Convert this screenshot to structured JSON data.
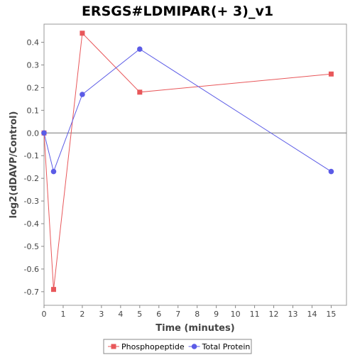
{
  "chart_data": {
    "type": "line",
    "title": "ERSGS#LDMIPAR(+ 3)_v1",
    "xlabel": "Time (minutes)",
    "ylabel": "log2(dDAVP/Control)",
    "xlim": [
      0,
      15.8
    ],
    "ylim": [
      -0.76,
      0.48
    ],
    "xticks": [
      0,
      1,
      2,
      3,
      4,
      5,
      6,
      7,
      8,
      9,
      10,
      11,
      12,
      13,
      14,
      15
    ],
    "yticks": [
      -0.7,
      -0.6,
      -0.5,
      -0.4,
      -0.3,
      -0.2,
      -0.1,
      0.0,
      0.1,
      0.2,
      0.3,
      0.4
    ],
    "ytick_labels": [
      "-0.7",
      "-0.6",
      "-0.5",
      "-0.4",
      "-0.3",
      "-0.2",
      "-0.1",
      "0.0",
      "0.1",
      "0.2",
      "0.3",
      "0.4"
    ],
    "grid": false,
    "zero_line": true,
    "legend_position": "bottom-center",
    "series": [
      {
        "name": "Phosphopeptide",
        "marker": "square",
        "color": "#e8575a",
        "x": [
          0,
          0.5,
          2,
          5,
          15
        ],
        "y": [
          0.0,
          -0.69,
          0.44,
          0.18,
          0.26
        ]
      },
      {
        "name": "Total Protein",
        "marker": "circle",
        "color": "#5b5be6",
        "x": [
          0,
          0.5,
          2,
          5,
          15
        ],
        "y": [
          0.0,
          -0.17,
          0.17,
          0.37,
          -0.17
        ]
      }
    ]
  }
}
